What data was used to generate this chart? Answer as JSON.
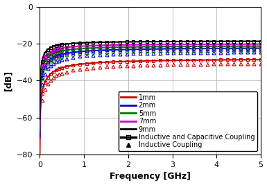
{
  "title": "",
  "xlabel": "Frequency [GHz]",
  "ylabel": "[dB]",
  "xlim": [
    0,
    5
  ],
  "ylim": [
    -80,
    0
  ],
  "yticks": [
    0,
    -20,
    -40,
    -60,
    -80
  ],
  "xticks": [
    0,
    1,
    2,
    3,
    4,
    5
  ],
  "grid": true,
  "series": [
    {
      "label": "1mm",
      "color": "#cc0000",
      "asym_ic": -28.0,
      "asym_ind": -30.0,
      "f0_ic": 0.4,
      "f0_ind": 0.5
    },
    {
      "label": "2mm",
      "color": "#0000cc",
      "asym_ic": -22.0,
      "asym_ind": -24.0,
      "f0_ic": 0.28,
      "f0_ind": 0.36
    },
    {
      "label": "5mm",
      "color": "#007700",
      "asym_ic": -21.0,
      "asym_ind": -23.0,
      "f0_ic": 0.2,
      "f0_ind": 0.26
    },
    {
      "label": "7mm",
      "color": "#cc00cc",
      "asym_ic": -20.0,
      "asym_ind": -22.0,
      "f0_ic": 0.16,
      "f0_ind": 0.22
    },
    {
      "label": "9mm",
      "color": "#000000",
      "asym_ic": -18.5,
      "asym_ind": -20.5,
      "f0_ic": 0.13,
      "f0_ind": 0.18
    }
  ],
  "legend_lines": [
    {
      "label": "Inductive and Capacitive Coupling"
    },
    {
      "label": "Inductive Coupling"
    }
  ],
  "background_color": "#ffffff",
  "axis_fontsize": 9,
  "tick_fontsize": 8,
  "legend_fontsize": 7.0
}
